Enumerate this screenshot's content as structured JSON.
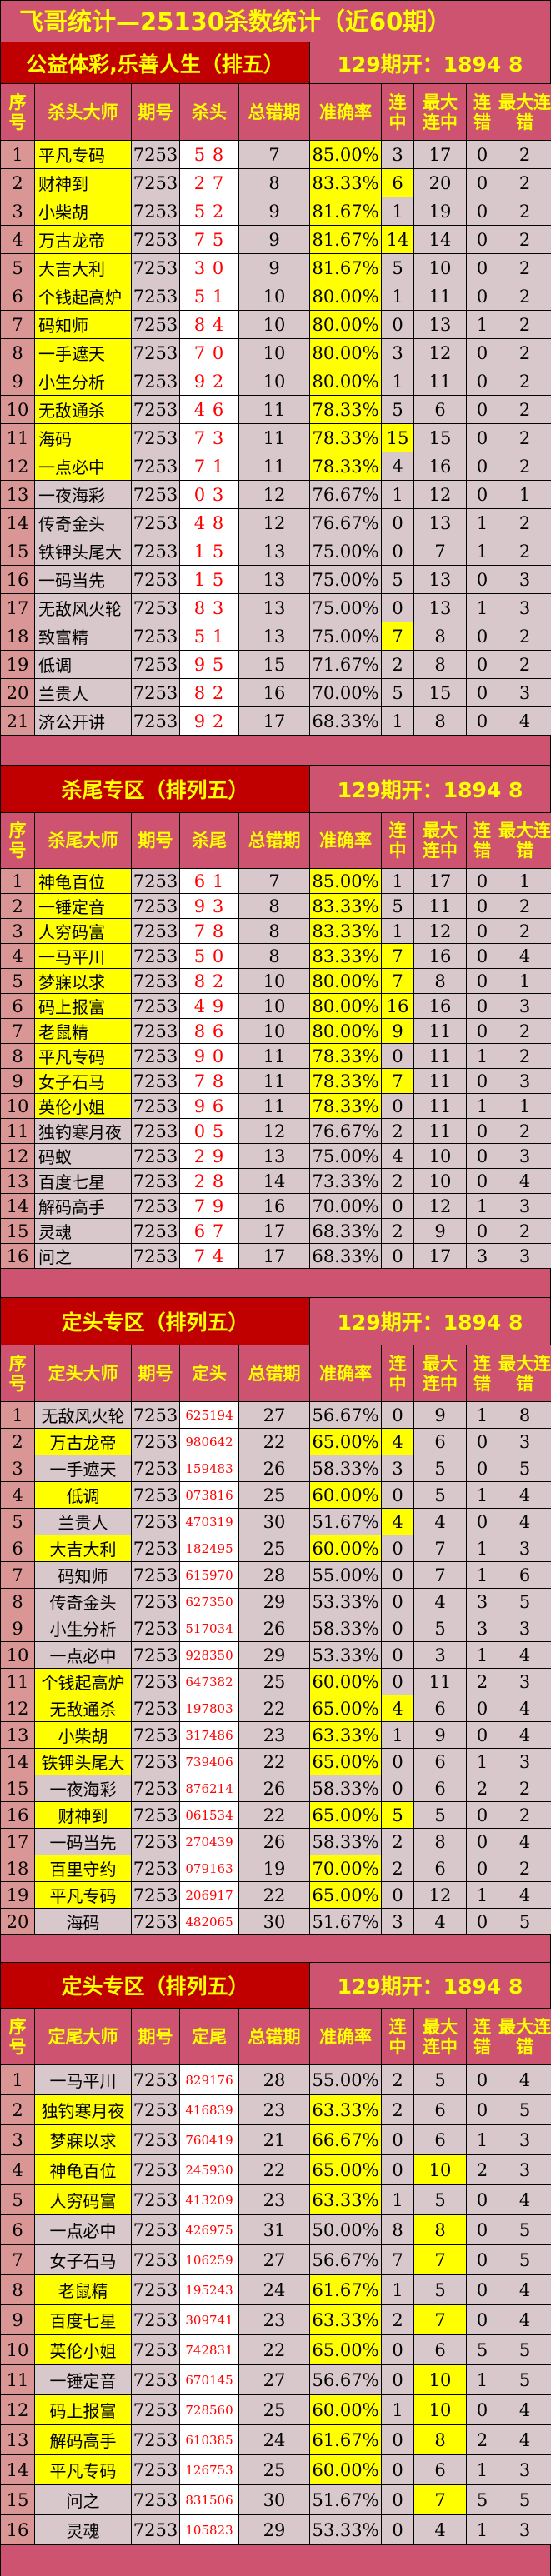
{
  "title": "飞哥统计—25130杀数统计（近60期）",
  "colors": {
    "background": "#CD5370",
    "banner": "#C00000",
    "highlight": "#FFFF00",
    "cell": "#D8C8CC",
    "seq": "#DA9694",
    "number_text": "#FF0000"
  },
  "sections": [
    {
      "subtitle": "公益体彩,乐善人生（排五）",
      "result": "129期开：1894 8",
      "headers": [
        "序号",
        "杀头大师",
        "期号",
        "杀头",
        "总错期",
        "准确率",
        "连中",
        "最大连中",
        "连错",
        "最大连错"
      ],
      "name_align": "left",
      "six": false,
      "hl_name_rate": [
        1,
        2,
        3,
        4,
        5,
        6,
        7,
        8,
        9,
        10,
        11,
        12
      ],
      "hl_lz": [
        2,
        4,
        11,
        18
      ],
      "hl_maxlz": [],
      "rows": [
        [
          "1",
          "平凡专码",
          "7253",
          "5 8",
          "7",
          "85.00%",
          "3",
          "17",
          "0",
          "2"
        ],
        [
          "2",
          "财神到",
          "7253",
          "2 7",
          "8",
          "83.33%",
          "6",
          "20",
          "0",
          "2"
        ],
        [
          "3",
          "小柴胡",
          "7253",
          "5 2",
          "9",
          "81.67%",
          "1",
          "19",
          "0",
          "2"
        ],
        [
          "4",
          "万古龙帝",
          "7253",
          "7 5",
          "9",
          "81.67%",
          "14",
          "14",
          "0",
          "2"
        ],
        [
          "5",
          "大吉大利",
          "7253",
          "3 0",
          "9",
          "81.67%",
          "5",
          "10",
          "0",
          "2"
        ],
        [
          "6",
          "个钱起高炉",
          "7253",
          "5 1",
          "10",
          "80.00%",
          "1",
          "11",
          "0",
          "2"
        ],
        [
          "7",
          "码知师",
          "7253",
          "8 4",
          "10",
          "80.00%",
          "0",
          "13",
          "1",
          "2"
        ],
        [
          "8",
          "一手遮天",
          "7253",
          "7 0",
          "10",
          "80.00%",
          "3",
          "12",
          "0",
          "2"
        ],
        [
          "9",
          "小生分析",
          "7253",
          "9 2",
          "10",
          "80.00%",
          "1",
          "11",
          "0",
          "2"
        ],
        [
          "10",
          "无敌通杀",
          "7253",
          "4 6",
          "11",
          "78.33%",
          "5",
          "6",
          "0",
          "2"
        ],
        [
          "11",
          "海码",
          "7253",
          "7 3",
          "11",
          "78.33%",
          "15",
          "15",
          "0",
          "2"
        ],
        [
          "12",
          "一点必中",
          "7253",
          "7 1",
          "11",
          "78.33%",
          "4",
          "16",
          "0",
          "2"
        ],
        [
          "13",
          "一夜海彩",
          "7253",
          "0 3",
          "12",
          "76.67%",
          "1",
          "12",
          "0",
          "1"
        ],
        [
          "14",
          "传奇金头",
          "7253",
          "4 8",
          "12",
          "76.67%",
          "0",
          "13",
          "1",
          "2"
        ],
        [
          "15",
          "铁钾头尾大",
          "7253",
          "1 5",
          "13",
          "75.00%",
          "0",
          "7",
          "1",
          "2"
        ],
        [
          "16",
          "一码当先",
          "7253",
          "1 5",
          "13",
          "75.00%",
          "5",
          "13",
          "0",
          "3"
        ],
        [
          "17",
          "无敌风火轮",
          "7253",
          "8 3",
          "13",
          "75.00%",
          "0",
          "13",
          "1",
          "3"
        ],
        [
          "18",
          "致富精",
          "7253",
          "5 1",
          "13",
          "75.00%",
          "7",
          "8",
          "0",
          "2"
        ],
        [
          "19",
          "低调",
          "7253",
          "9 5",
          "15",
          "71.67%",
          "2",
          "8",
          "0",
          "2"
        ],
        [
          "20",
          "兰贵人",
          "7253",
          "8 2",
          "16",
          "70.00%",
          "5",
          "15",
          "0",
          "3"
        ],
        [
          "21",
          "济公开讲",
          "7253",
          "9 2",
          "17",
          "68.33%",
          "1",
          "8",
          "0",
          "4"
        ]
      ]
    },
    {
      "subtitle": "杀尾专区（排列五）",
      "result": "129期开：1894 8",
      "headers": [
        "序号",
        "杀尾大师",
        "期号",
        "杀尾",
        "总错期",
        "准确率",
        "连中",
        "最大连中",
        "连错",
        "最大连错"
      ],
      "name_align": "left",
      "six": false,
      "hl_name_rate": [
        1,
        2,
        3,
        4,
        5,
        6,
        7,
        8,
        9,
        10
      ],
      "hl_lz": [
        4,
        5,
        6,
        7,
        9
      ],
      "hl_maxlz": [],
      "rows": [
        [
          "1",
          "神龟百位",
          "7253",
          "6 1",
          "7",
          "85.00%",
          "1",
          "17",
          "0",
          "1"
        ],
        [
          "2",
          "一锤定音",
          "7253",
          "9 3",
          "8",
          "83.33%",
          "5",
          "11",
          "0",
          "2"
        ],
        [
          "3",
          "人穷码富",
          "7253",
          "7 8",
          "8",
          "83.33%",
          "1",
          "12",
          "0",
          "2"
        ],
        [
          "4",
          "一马平川",
          "7253",
          "5 0",
          "8",
          "83.33%",
          "7",
          "16",
          "0",
          "4"
        ],
        [
          "5",
          "梦寐以求",
          "7253",
          "8 2",
          "10",
          "80.00%",
          "7",
          "8",
          "0",
          "1"
        ],
        [
          "6",
          "码上报富",
          "7253",
          "4 9",
          "10",
          "80.00%",
          "16",
          "16",
          "0",
          "3"
        ],
        [
          "7",
          "老鼠精",
          "7253",
          "8 6",
          "10",
          "80.00%",
          "9",
          "11",
          "0",
          "2"
        ],
        [
          "8",
          "平凡专码",
          "7253",
          "9 0",
          "11",
          "78.33%",
          "0",
          "11",
          "1",
          "2"
        ],
        [
          "9",
          "女子石马",
          "7253",
          "7 8",
          "11",
          "78.33%",
          "7",
          "11",
          "0",
          "3"
        ],
        [
          "10",
          "英伦小姐",
          "7253",
          "9 6",
          "11",
          "78.33%",
          "0",
          "11",
          "1",
          "1"
        ],
        [
          "11",
          "独钓寒月夜",
          "7253",
          "0 5",
          "12",
          "76.67%",
          "2",
          "11",
          "0",
          "2"
        ],
        [
          "12",
          "码蚁",
          "7253",
          "2 9",
          "13",
          "75.00%",
          "4",
          "10",
          "0",
          "3"
        ],
        [
          "13",
          "百度七星",
          "7253",
          "2 8",
          "14",
          "73.33%",
          "2",
          "10",
          "0",
          "4"
        ],
        [
          "14",
          "解码高手",
          "7253",
          "7 9",
          "16",
          "70.00%",
          "0",
          "12",
          "1",
          "3"
        ],
        [
          "15",
          "灵魂",
          "7253",
          "6 7",
          "17",
          "68.33%",
          "2",
          "9",
          "0",
          "2"
        ],
        [
          "16",
          "问之",
          "7253",
          "7 4",
          "17",
          "68.33%",
          "0",
          "17",
          "3",
          "3"
        ]
      ]
    },
    {
      "subtitle": "定头专区（排列五）",
      "result": "129期开：1894 8",
      "headers": [
        "序号",
        "定头大师",
        "期号",
        "定头",
        "总错期",
        "准确率",
        "连中",
        "最大连中",
        "连错",
        "最大连错"
      ],
      "name_align": "center",
      "six": true,
      "hl_name_rate": [
        2,
        4,
        6,
        11,
        12,
        13,
        14,
        16,
        18,
        19
      ],
      "hl_lz": [
        2,
        5,
        12,
        16
      ],
      "hl_maxlz": [],
      "rows": [
        [
          "1",
          "无敌风火轮",
          "7253",
          "625194",
          "27",
          "56.67%",
          "0",
          "9",
          "1",
          "8"
        ],
        [
          "2",
          "万古龙帝",
          "7253",
          "980642",
          "22",
          "65.00%",
          "4",
          "6",
          "0",
          "3"
        ],
        [
          "3",
          "一手遮天",
          "7253",
          "159483",
          "26",
          "58.33%",
          "3",
          "5",
          "0",
          "5"
        ],
        [
          "4",
          "低调",
          "7253",
          "073816",
          "25",
          "60.00%",
          "0",
          "5",
          "1",
          "4"
        ],
        [
          "5",
          "兰贵人",
          "7253",
          "470319",
          "30",
          "51.67%",
          "4",
          "4",
          "0",
          "4"
        ],
        [
          "6",
          "大吉大利",
          "7253",
          "182495",
          "25",
          "60.00%",
          "0",
          "7",
          "1",
          "3"
        ],
        [
          "7",
          "码知师",
          "7253",
          "615970",
          "28",
          "55.00%",
          "0",
          "7",
          "1",
          "6"
        ],
        [
          "8",
          "传奇金头",
          "7253",
          "627350",
          "29",
          "53.33%",
          "0",
          "4",
          "3",
          "5"
        ],
        [
          "9",
          "小生分析",
          "7253",
          "517034",
          "26",
          "58.33%",
          "0",
          "5",
          "3",
          "3"
        ],
        [
          "10",
          "一点必中",
          "7253",
          "928350",
          "29",
          "53.33%",
          "0",
          "3",
          "1",
          "4"
        ],
        [
          "11",
          "个钱起高炉",
          "7253",
          "647382",
          "25",
          "60.00%",
          "0",
          "11",
          "2",
          "3"
        ],
        [
          "12",
          "无敌通杀",
          "7253",
          "197803",
          "22",
          "65.00%",
          "4",
          "6",
          "0",
          "4"
        ],
        [
          "13",
          "小柴胡",
          "7253",
          "317486",
          "23",
          "63.33%",
          "1",
          "9",
          "0",
          "4"
        ],
        [
          "14",
          "铁钾头尾大",
          "7253",
          "739406",
          "22",
          "65.00%",
          "0",
          "6",
          "1",
          "3"
        ],
        [
          "15",
          "一夜海彩",
          "7253",
          "876214",
          "26",
          "58.33%",
          "0",
          "6",
          "2",
          "2"
        ],
        [
          "16",
          "财神到",
          "7253",
          "061534",
          "22",
          "65.00%",
          "5",
          "5",
          "0",
          "2"
        ],
        [
          "17",
          "一码当先",
          "7253",
          "270439",
          "26",
          "58.33%",
          "2",
          "8",
          "0",
          "4"
        ],
        [
          "18",
          "百里守约",
          "7253",
          "079163",
          "19",
          "70.00%",
          "2",
          "6",
          "0",
          "2"
        ],
        [
          "19",
          "平凡专码",
          "7253",
          "206917",
          "22",
          "65.00%",
          "0",
          "12",
          "1",
          "4"
        ],
        [
          "20",
          "海码",
          "7253",
          "482065",
          "30",
          "51.67%",
          "3",
          "4",
          "0",
          "5"
        ]
      ]
    },
    {
      "subtitle": "定头专区（排列五）",
      "result": "129期开：1894 8",
      "headers": [
        "序号",
        "定尾大师",
        "期号",
        "定尾",
        "总错期",
        "准确率",
        "连中",
        "最大连中",
        "连错",
        "最大连错"
      ],
      "name_align": "center",
      "six": true,
      "hl_name_rate": [
        2,
        3,
        4,
        5,
        8,
        9,
        10,
        12,
        13,
        14
      ],
      "hl_lz": [],
      "hl_maxlz": [
        4,
        6,
        7,
        9,
        11,
        12,
        13,
        15
      ],
      "rows": [
        [
          "1",
          "一马平川",
          "7253",
          "829176",
          "28",
          "55.00%",
          "2",
          "5",
          "0",
          "4"
        ],
        [
          "2",
          "独钓寒月夜",
          "7253",
          "416839",
          "23",
          "63.33%",
          "2",
          "6",
          "0",
          "5"
        ],
        [
          "3",
          "梦寐以求",
          "7253",
          "760419",
          "21",
          "66.67%",
          "0",
          "6",
          "1",
          "3"
        ],
        [
          "4",
          "神龟百位",
          "7253",
          "245930",
          "22",
          "65.00%",
          "0",
          "10",
          "2",
          "3"
        ],
        [
          "5",
          "人穷码富",
          "7253",
          "413209",
          "23",
          "63.33%",
          "1",
          "5",
          "0",
          "4"
        ],
        [
          "6",
          "一点必中",
          "7253",
          "426975",
          "31",
          "50.00%",
          "8",
          "8",
          "0",
          "5"
        ],
        [
          "7",
          "女子石马",
          "7253",
          "106259",
          "27",
          "56.67%",
          "7",
          "7",
          "0",
          "5"
        ],
        [
          "8",
          "老鼠精",
          "7253",
          "195243",
          "24",
          "61.67%",
          "1",
          "5",
          "0",
          "4"
        ],
        [
          "9",
          "百度七星",
          "7253",
          "309741",
          "23",
          "63.33%",
          "2",
          "7",
          "0",
          "4"
        ],
        [
          "10",
          "英伦小姐",
          "7253",
          "742831",
          "22",
          "65.00%",
          "0",
          "6",
          "5",
          "5"
        ],
        [
          "11",
          "一锤定音",
          "7253",
          "670145",
          "27",
          "56.67%",
          "0",
          "10",
          "1",
          "5"
        ],
        [
          "12",
          "码上报富",
          "7253",
          "728560",
          "25",
          "60.00%",
          "1",
          "10",
          "0",
          "4"
        ],
        [
          "13",
          "解码高手",
          "7253",
          "610385",
          "24",
          "61.67%",
          "0",
          "8",
          "2",
          "4"
        ],
        [
          "14",
          "平凡专码",
          "7253",
          "126753",
          "25",
          "60.00%",
          "0",
          "6",
          "1",
          "3"
        ],
        [
          "15",
          "问之",
          "7253",
          "831506",
          "30",
          "51.67%",
          "0",
          "7",
          "5",
          "5"
        ],
        [
          "16",
          "灵魂",
          "7253",
          "105823",
          "29",
          "53.33%",
          "0",
          "4",
          "1",
          "3"
        ]
      ]
    }
  ]
}
